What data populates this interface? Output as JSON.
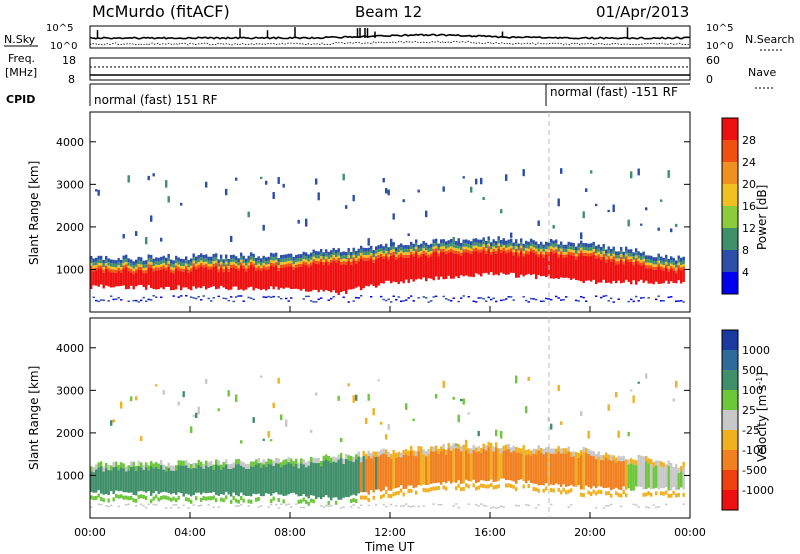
{
  "header": {
    "site": "McMurdo (fitACF)",
    "beam": "Beam 12",
    "date": "01/Apr/2013"
  },
  "summary": {
    "nsky_label": "N.Sky",
    "nsky_ticks": [
      "10^5",
      "10^0"
    ],
    "nsearch_label": "N.Search",
    "nsearch_ticks": [
      "10^5",
      "10^0"
    ],
    "freq_label": "Freq.",
    "freq_unit": "[MHz]",
    "freq_ticks": [
      "18",
      "8"
    ],
    "nave_label": "Nave",
    "nave_ticks": [
      "60",
      "0"
    ],
    "cpid_label": "CPID",
    "cpid_left": "normal (fast) 151 RF",
    "cpid_right": "normal (fast) -151 RF"
  },
  "chart_data": [
    {
      "type": "heatmap",
      "panel": "power",
      "ylabel": "Slant Range [km]",
      "yticks": [
        "1000",
        "2000",
        "3000",
        "4000"
      ],
      "colorbar_label": "Power [dB]",
      "colorbar_ticks": [
        "4",
        "8",
        "12",
        "16",
        "20",
        "24",
        "28"
      ],
      "colors": [
        "#0000ee",
        "#2b4fa8",
        "#3f8f6a",
        "#8ccc3c",
        "#f0c020",
        "#f09020",
        "#f05010",
        "#ee1010"
      ],
      "series_bands": [
        {
          "x": [
            0,
            4,
            8,
            10,
            12,
            14,
            16,
            18,
            20,
            23.5
          ],
          "low": [
            600,
            560,
            560,
            450,
            700,
            820,
            900,
            820,
            700,
            700
          ],
          "high": [
            1250,
            1300,
            1350,
            1450,
            1580,
            1680,
            1720,
            1650,
            1600,
            1250
          ]
        }
      ]
    },
    {
      "type": "heatmap",
      "panel": "velocity",
      "ylabel": "Slant Range [km]",
      "yticks": [
        "1000",
        "2000",
        "3000",
        "4000"
      ],
      "xlabel": "Time UT",
      "xticks": [
        "00:00",
        "04:00",
        "08:00",
        "12:00",
        "16:00",
        "20:00",
        "00:00"
      ],
      "colorbar_label": "Velocity [m s^-1]",
      "colorbar_ticks": [
        "1000",
        "500",
        "100",
        "25",
        "-25",
        "-100",
        "-500",
        "-1000"
      ],
      "colors": [
        "#1a3aa0",
        "#2e6a9a",
        "#3f8f6a",
        "#6cc83a",
        "#c8c8c8",
        "#f0b020",
        "#f08020",
        "#ee4010",
        "#ee1010"
      ]
    }
  ]
}
